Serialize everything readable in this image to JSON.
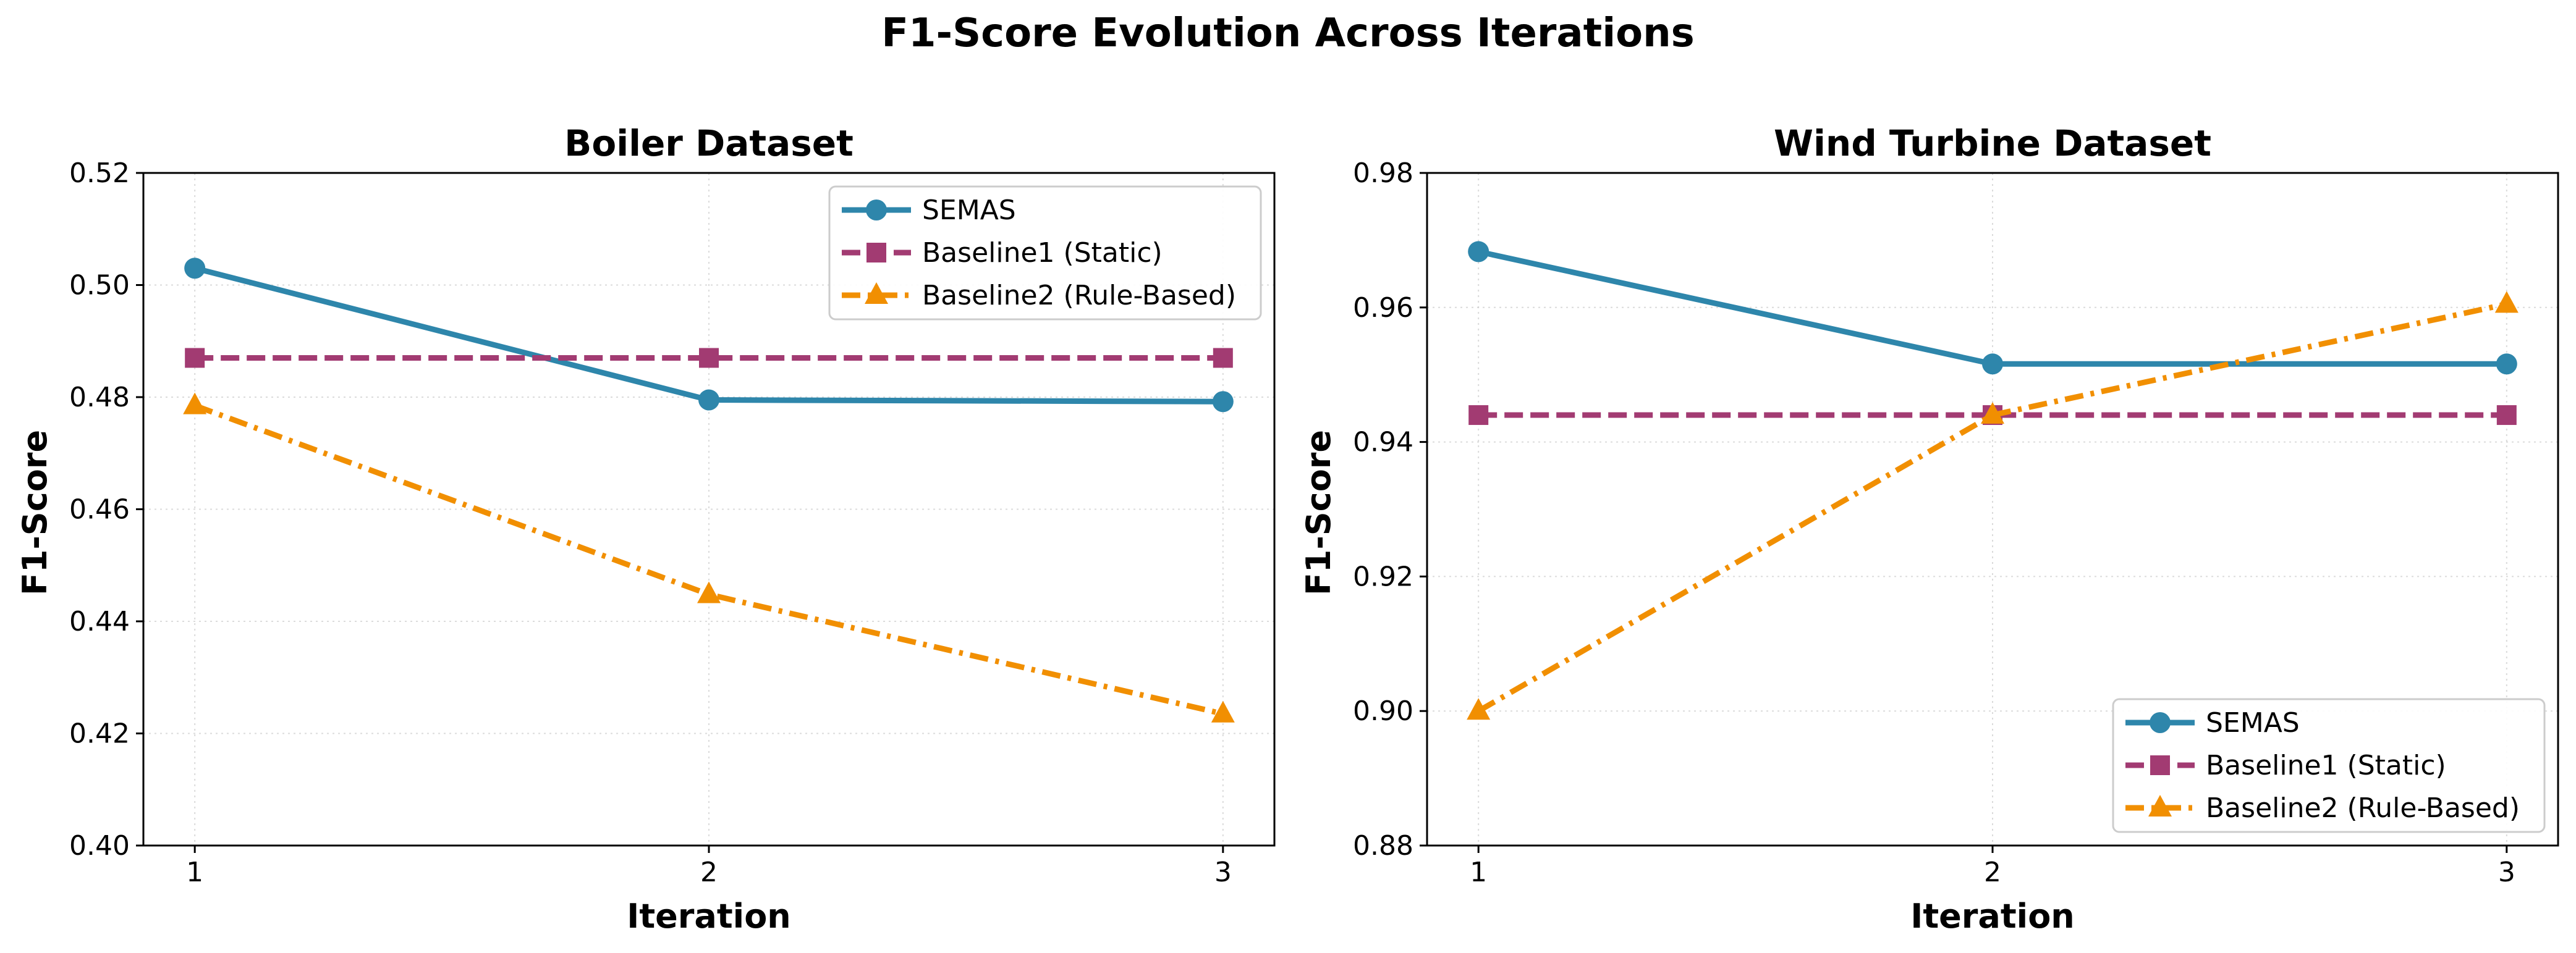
{
  "figure": {
    "title": "F1-Score Evolution Across Iterations"
  },
  "colors": {
    "SEMAS": "#2e86ab",
    "Baseline1 (Static)": "#a23b72",
    "Baseline2 (Rule-Based)": "#f18f01"
  },
  "chart_data": [
    {
      "type": "line",
      "title": "Boiler Dataset",
      "xlabel": "Iteration",
      "ylabel": "F1-Score",
      "x": [
        1,
        2,
        3
      ],
      "xticks": [
        "1",
        "2",
        "3"
      ],
      "xlim": [
        0.9,
        3.1
      ],
      "ylim": [
        0.4,
        0.52
      ],
      "yticks": [
        "0.40",
        "0.42",
        "0.44",
        "0.46",
        "0.48",
        "0.50",
        "0.52"
      ],
      "grid": true,
      "legend_position": "top-right",
      "series": [
        {
          "name": "SEMAS",
          "values": [
            0.503,
            0.4795,
            0.4792
          ],
          "line_style": "solid",
          "marker": "circle"
        },
        {
          "name": "Baseline1 (Static)",
          "values": [
            0.487,
            0.487,
            0.487
          ],
          "line_style": "dashed",
          "marker": "square"
        },
        {
          "name": "Baseline2 (Rule-Based)",
          "values": [
            0.4785,
            0.4448,
            0.4235
          ],
          "line_style": "dashdot",
          "marker": "triangle"
        }
      ]
    },
    {
      "type": "line",
      "title": "Wind Turbine Dataset",
      "xlabel": "Iteration",
      "ylabel": "F1-Score",
      "x": [
        1,
        2,
        3
      ],
      "xticks": [
        "1",
        "2",
        "3"
      ],
      "xlim": [
        0.9,
        3.1
      ],
      "ylim": [
        0.88,
        0.98
      ],
      "yticks": [
        "0.88",
        "0.90",
        "0.92",
        "0.94",
        "0.96",
        "0.98"
      ],
      "grid": true,
      "legend_position": "bottom-right",
      "series": [
        {
          "name": "SEMAS",
          "values": [
            0.9683,
            0.9516,
            0.9516
          ],
          "line_style": "solid",
          "marker": "circle"
        },
        {
          "name": "Baseline1 (Static)",
          "values": [
            0.944,
            0.944,
            0.944
          ],
          "line_style": "dashed",
          "marker": "square"
        },
        {
          "name": "Baseline2 (Rule-Based)",
          "values": [
            0.9,
            0.944,
            0.9605
          ],
          "line_style": "dashdot",
          "marker": "triangle"
        }
      ]
    }
  ]
}
